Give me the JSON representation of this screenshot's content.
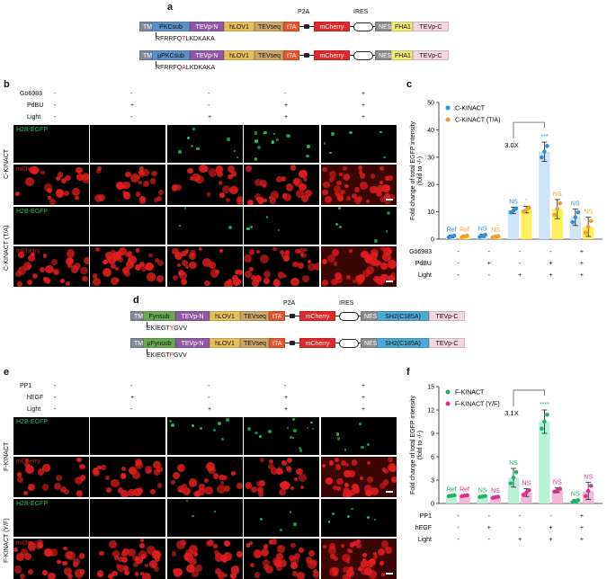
{
  "panels": {
    "a": "a",
    "b": "b",
    "c": "c",
    "d": "d",
    "e": "e",
    "f": "f"
  },
  "colors": {
    "green": "#22c55e",
    "red": "#e11d1d",
    "blue": "#2f8fd8",
    "orange": "#f0a030",
    "teal": "#1ab56a",
    "pink": "#d6338a"
  },
  "panel_a": {
    "p2a": "P2A",
    "ires": "IRES",
    "row1": [
      "TM",
      "PKCsub",
      "TEVp-N",
      "hLOV1",
      "TEVseq",
      "tTA",
      "mCherry",
      "NES",
      "FHA1",
      "TEVp-C"
    ],
    "row2": [
      "TM",
      "μPKCsub",
      "TEVp-N",
      "hLOV1",
      "TEVseq",
      "tTA",
      "mCherry",
      "NES",
      "FHA1",
      "TEVp-C"
    ],
    "seq1_pre": "RFRRFQ",
    "seq1_mut": "T",
    "seq1_post": "LKDKAKA",
    "seq2_pre": "RFRRFQ",
    "seq2_mut": "A",
    "seq2_post": "LKDKAKA"
  },
  "panel_d": {
    "p2a": "P2A",
    "ires": "IRES",
    "row1": [
      "TM",
      "Fynsub",
      "TEVp-N",
      "hLOV1",
      "TEVseq",
      "tTA",
      "mCherry",
      "NES",
      "SH2(C185A)",
      "TEVp-C"
    ],
    "row2": [
      "TM",
      "μFynsub",
      "TEVp-N",
      "hLOV1",
      "TEVseq",
      "tTA",
      "mCherry",
      "NES",
      "SH2(C185A)",
      "TEVp-C"
    ],
    "seq1_pre": "EKIEGT",
    "seq1_mut": "Y",
    "seq1_post": "GVV",
    "seq2_pre": "EKIEGT",
    "seq2_mut": "F",
    "seq2_post": "GVV"
  },
  "panel_b": {
    "cond_labels": [
      "Gö6983",
      "PdBU",
      "Light"
    ],
    "cond_vals": [
      [
        "-",
        "-",
        "-",
        "-",
        "+"
      ],
      [
        "-",
        "+",
        "-",
        "+",
        "+"
      ],
      [
        "-",
        "-",
        "+",
        "+",
        "+"
      ]
    ],
    "rows": [
      "C-KINACT",
      "C-KINACT (T/A)"
    ],
    "channels": [
      "H2B-EGFP",
      "mCherry"
    ]
  },
  "panel_e": {
    "cond_labels": [
      "PP1",
      "hEGF",
      "Light"
    ],
    "cond_vals": [
      [
        "-",
        "-",
        "-",
        "-",
        "+"
      ],
      [
        "-",
        "+",
        "-",
        "+",
        "+"
      ],
      [
        "-",
        "-",
        "+",
        "+",
        "+"
      ]
    ],
    "rows": [
      "F-KINACT",
      "F-KINACT (Y/F)"
    ],
    "channels": [
      "H2B-EGFP",
      "mCherry"
    ]
  },
  "chart_data": [
    {
      "type": "bar",
      "ylabel": "Fold change of total EGFP intensity (fold to -/-)",
      "ylim": [
        0,
        50
      ],
      "yticks": [
        0,
        10,
        20,
        30,
        40,
        50
      ],
      "series": [
        {
          "name": "C-KINACT",
          "values": [
            1,
            1.2,
            10.5,
            32,
            8
          ]
        },
        {
          "name": "C-KINACT (T/A)",
          "values": [
            1,
            0.9,
            10.8,
            11,
            4.5
          ]
        }
      ],
      "errors": [
        [
          0.5,
          0.6,
          1.2,
          3.5,
          3
        ],
        [
          0.4,
          0.4,
          1.2,
          3.5,
          3.5
        ]
      ],
      "annotations": [
        [
          "Ref",
          "Ref"
        ],
        [
          "NS",
          "NS"
        ],
        [
          "NS",
          "*"
        ],
        [
          "***",
          "NS"
        ],
        [
          "NS",
          "NS"
        ]
      ],
      "comparison": "3.0X",
      "cond_labels": [
        "Gö6983",
        "PdBU",
        "Light"
      ],
      "cond_vals": [
        [
          "-",
          "-",
          "-",
          "-",
          "+"
        ],
        [
          "-",
          "+",
          "-",
          "+",
          "+"
        ],
        [
          "-",
          "-",
          "+",
          "+",
          "+"
        ]
      ],
      "legend": "top-left"
    },
    {
      "type": "bar",
      "ylabel": "Fold change of total EGFP intensity (fold to -/-)",
      "ylim": [
        0,
        15
      ],
      "yticks": [
        0,
        3,
        6,
        9,
        12,
        15
      ],
      "series": [
        {
          "name": "F-KINACT",
          "values": [
            1,
            0.9,
            3.3,
            10.5,
            0.3
          ]
        },
        {
          "name": "F-KINACT (Y/F)",
          "values": [
            1,
            0.8,
            1.4,
            1.7,
            1.6
          ]
        }
      ],
      "errors": [
        [
          0.1,
          0.1,
          1.2,
          1.5,
          0.2
        ],
        [
          0.1,
          0.1,
          0.5,
          0.3,
          1.1
        ]
      ],
      "annotations": [
        [
          "Ref",
          "Ref"
        ],
        [
          "NS",
          "NS"
        ],
        [
          "NS",
          "NS"
        ],
        [
          "****",
          "NS"
        ],
        [
          "NS",
          "NS"
        ]
      ],
      "comparison": "3.1X",
      "cond_labels": [
        "PP1",
        "hEGF",
        "Light"
      ],
      "cond_vals": [
        [
          "-",
          "-",
          "-",
          "-",
          "+"
        ],
        [
          "-",
          "+",
          "-",
          "+",
          "+"
        ],
        [
          "-",
          "-",
          "+",
          "+",
          "+"
        ]
      ],
      "legend": "top-left"
    }
  ]
}
